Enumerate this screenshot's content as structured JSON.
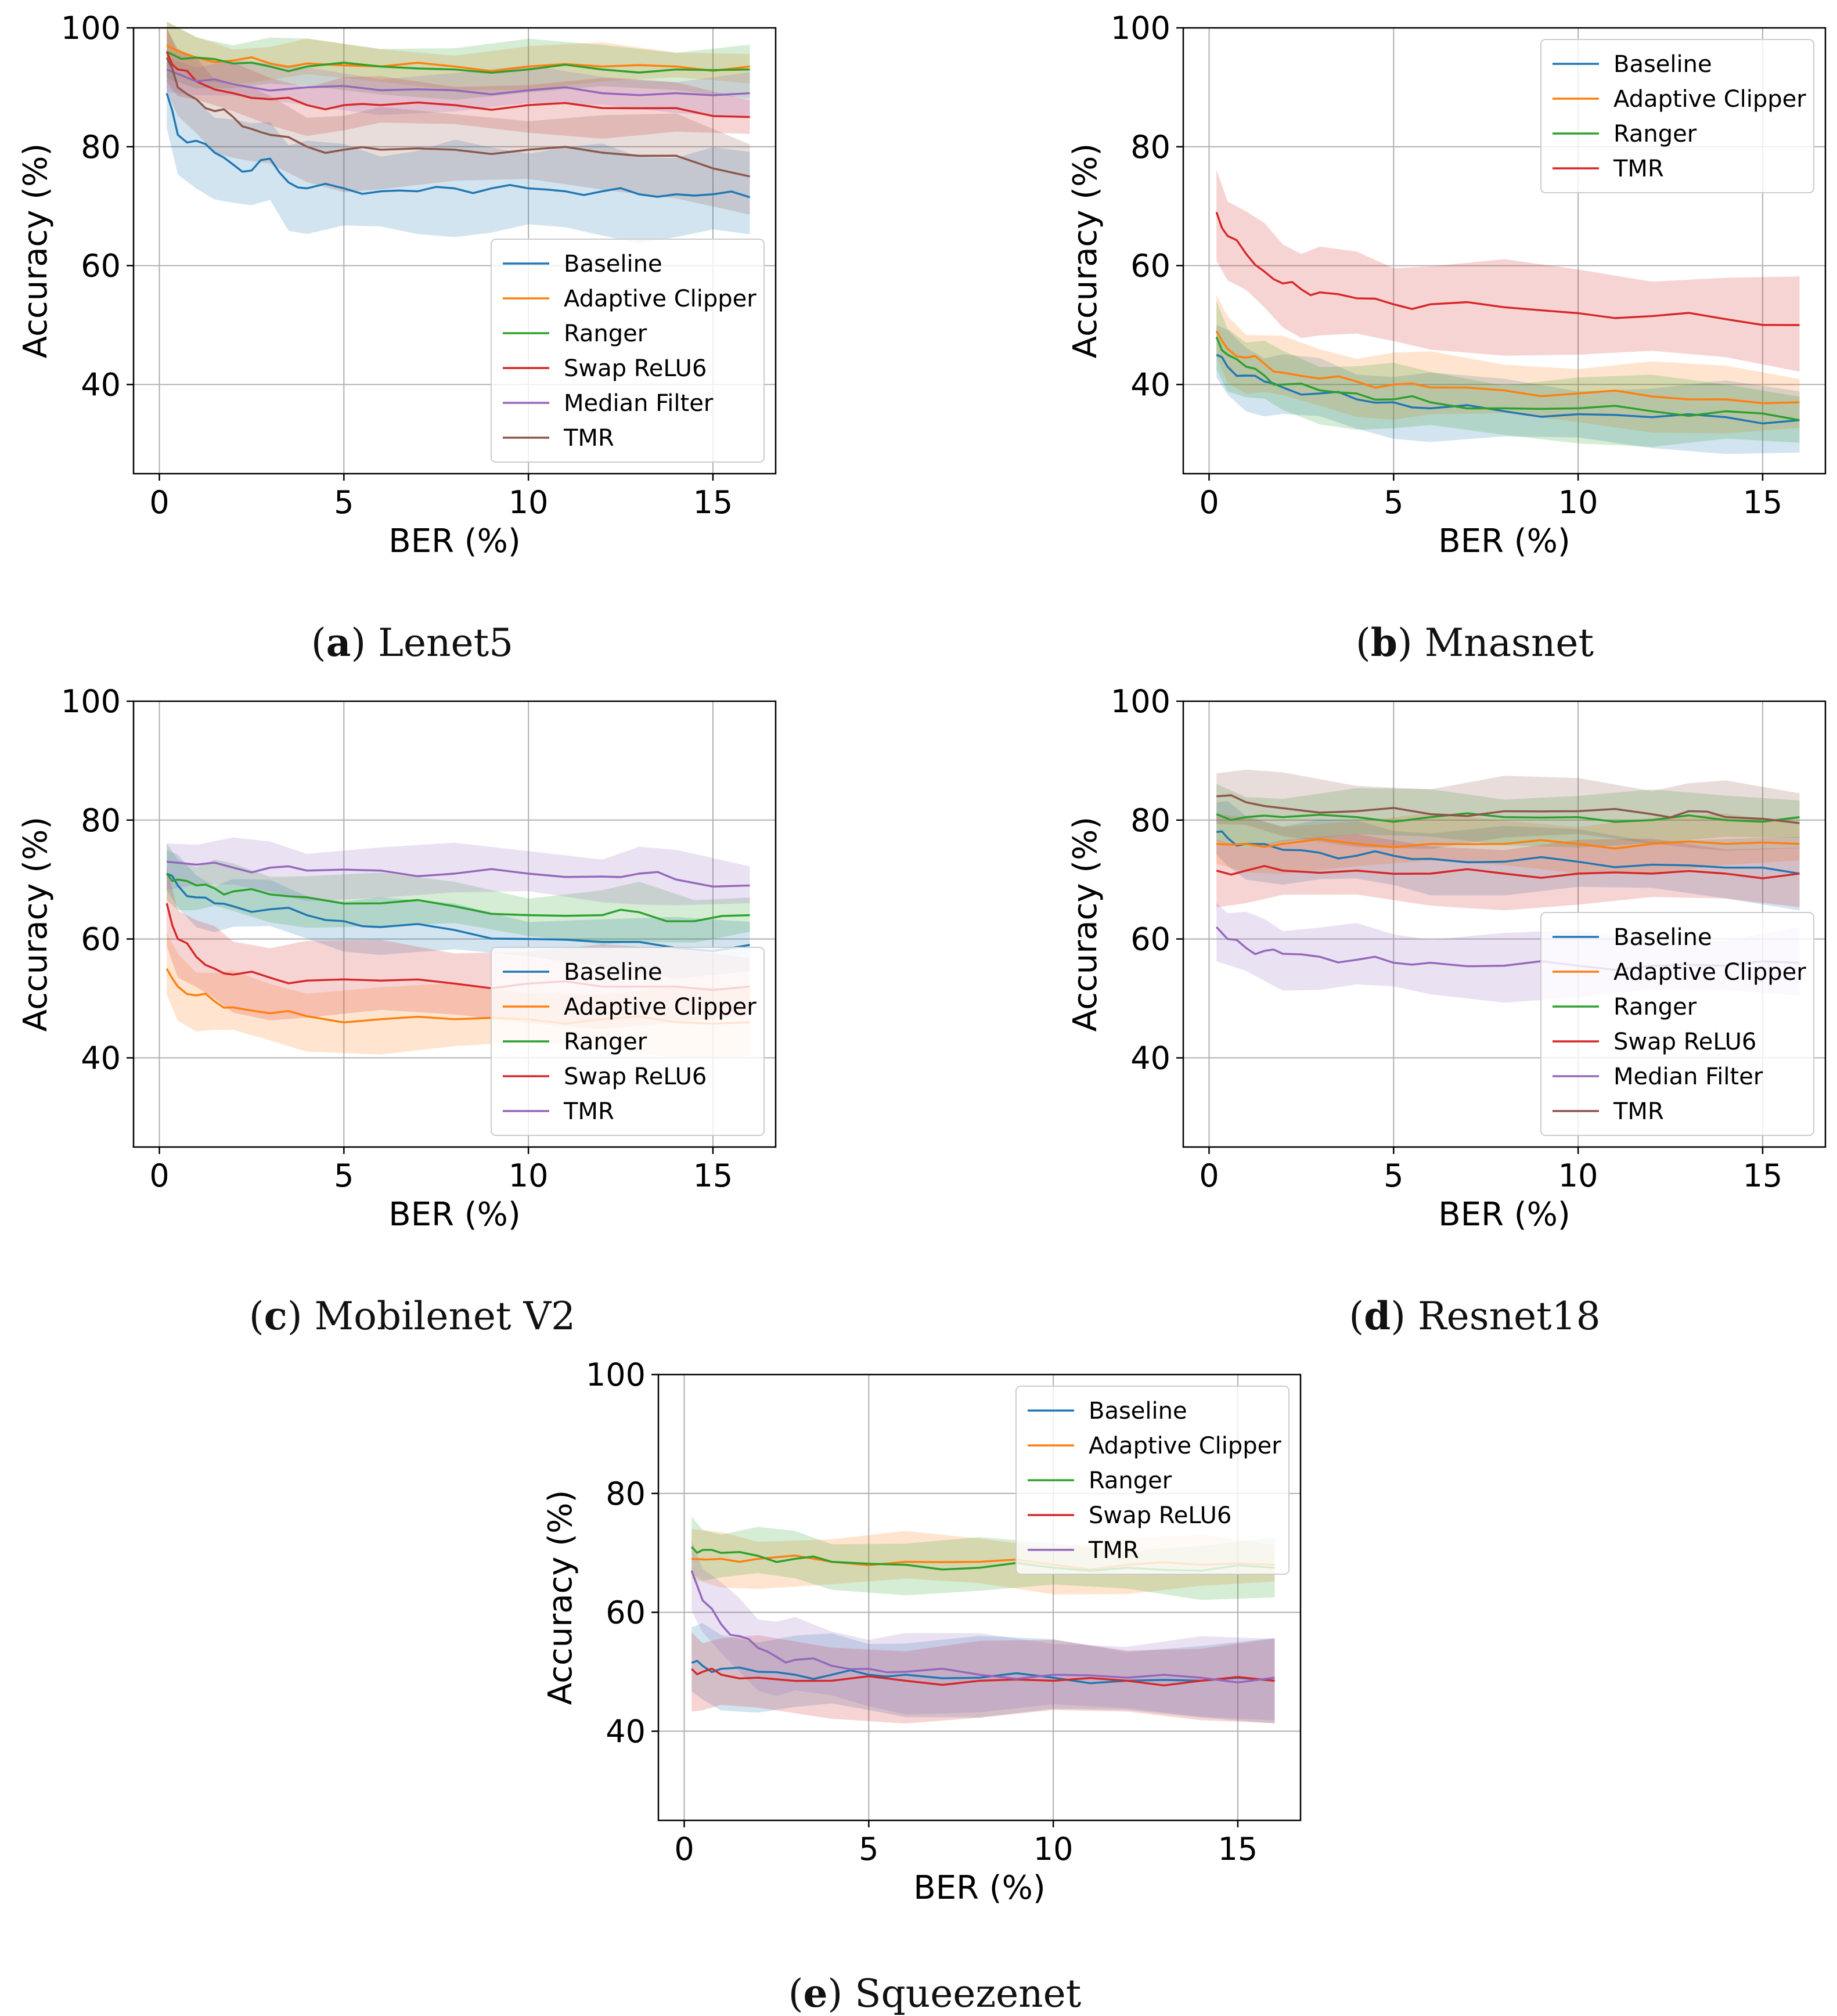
{
  "colors": {
    "Baseline": "#1f77b4",
    "Adaptive Clipper": "#ff7f0e",
    "Ranger": "#2ca02c",
    "Swap ReLU6": "#d62728",
    "Median Filter": "#9467bd",
    "TMR": "#8c564b"
  },
  "chart_data": [
    {
      "type": "line",
      "id": "a",
      "caption_letter": "a",
      "caption_name": "Lenet5",
      "xlabel": "BER (%)",
      "ylabel": "Accuracy (%)",
      "xlim": [
        -0.7,
        16.7
      ],
      "ylim": [
        25,
        100
      ],
      "xticks": [
        0,
        5,
        10,
        15
      ],
      "yticks": [
        40,
        60,
        80,
        100
      ],
      "grid": true,
      "legend_position": "lower-right",
      "series": [
        {
          "name": "Baseline",
          "color": "#1f77b4",
          "band": 7,
          "x": [
            0.2,
            0.5,
            1,
            1.5,
            2,
            2.5,
            3,
            3.5,
            4,
            5,
            6,
            7,
            8,
            9,
            10,
            11,
            12,
            13,
            14,
            15,
            16
          ],
          "values": [
            89,
            82,
            81,
            79,
            77,
            76,
            78,
            74,
            73,
            73,
            72.5,
            72.5,
            73,
            73,
            73,
            72.5,
            72.5,
            72,
            72,
            72,
            71.5
          ]
        },
        {
          "name": "Adaptive Clipper",
          "color": "#ff7f0e",
          "band": 3,
          "x": [
            0.2,
            1,
            2,
            3,
            4,
            6,
            8,
            10,
            12,
            14,
            16
          ],
          "values": [
            97,
            95,
            94.5,
            94,
            94,
            93.5,
            93.5,
            93.5,
            93.5,
            93.5,
            93.5
          ]
        },
        {
          "name": "Ranger",
          "color": "#2ca02c",
          "band": 4,
          "x": [
            0.2,
            1,
            2,
            3,
            4,
            6,
            8,
            10,
            12,
            14,
            16
          ],
          "values": [
            96,
            95,
            94,
            93.5,
            93.5,
            93.5,
            93,
            93,
            93,
            93,
            93
          ]
        },
        {
          "name": "Swap ReLU6",
          "color": "#d62728",
          "band": 4,
          "x": [
            0.2,
            0.5,
            1,
            2,
            3,
            4,
            5,
            6,
            8,
            10,
            12,
            14,
            16
          ],
          "values": [
            96,
            93,
            91,
            89,
            88,
            87,
            87,
            87,
            87,
            87,
            86.5,
            86.5,
            85
          ]
        },
        {
          "name": "Median Filter",
          "color": "#9467bd",
          "band": 3,
          "x": [
            0.2,
            1,
            2,
            4,
            6,
            8,
            10,
            12,
            14,
            16
          ],
          "values": [
            93,
            91,
            90.5,
            90,
            89.5,
            89.5,
            89.5,
            89,
            89,
            89
          ]
        },
        {
          "name": "TMR",
          "color": "#8c564b",
          "band": 6,
          "x": [
            0.2,
            0.5,
            1,
            1.5,
            2,
            2.5,
            3,
            4,
            5,
            6,
            8,
            10,
            12,
            14,
            16
          ],
          "values": [
            95,
            90,
            88,
            86,
            85,
            83,
            82,
            80,
            79.5,
            79.5,
            79.5,
            79.5,
            79,
            78.5,
            75
          ]
        }
      ]
    },
    {
      "type": "line",
      "id": "b",
      "caption_letter": "b",
      "caption_name": "Mnasnet",
      "xlabel": "BER (%)",
      "ylabel": "Accuracy (%)",
      "xlim": [
        -0.7,
        16.7
      ],
      "ylim": [
        25,
        100
      ],
      "xticks": [
        0,
        5,
        10,
        15
      ],
      "yticks": [
        40,
        60,
        80,
        100
      ],
      "grid": true,
      "legend_position": "upper-right",
      "series": [
        {
          "name": "Baseline",
          "color": "#1f77b4",
          "band": 5,
          "x": [
            0.2,
            0.5,
            1,
            1.5,
            2,
            3,
            4,
            5,
            6,
            8,
            10,
            12,
            14,
            16
          ],
          "values": [
            45,
            43,
            41.5,
            40.5,
            39.5,
            38.5,
            37.5,
            37,
            36,
            35.5,
            35,
            34.5,
            34.5,
            34
          ]
        },
        {
          "name": "Adaptive Clipper",
          "color": "#ff7f0e",
          "band": 5,
          "x": [
            0.2,
            0.5,
            1,
            1.5,
            2,
            3,
            4,
            5,
            6,
            8,
            10,
            12,
            14,
            16
          ],
          "values": [
            49,
            46,
            44.5,
            43.5,
            42,
            41,
            40.5,
            40,
            39.5,
            39,
            38.5,
            38,
            37.5,
            37
          ]
        },
        {
          "name": "Ranger",
          "color": "#2ca02c",
          "band": 5,
          "x": [
            0.2,
            0.5,
            1,
            1.5,
            2,
            3,
            4,
            5,
            6,
            8,
            10,
            12,
            14,
            16
          ],
          "values": [
            48,
            45,
            43,
            41.5,
            40,
            39,
            38.5,
            37.5,
            37,
            36,
            36,
            35.5,
            35.5,
            34
          ]
        },
        {
          "name": "TMR",
          "color": "#d62728",
          "band": 7,
          "x": [
            0.2,
            0.5,
            1,
            1.5,
            2,
            2.5,
            3,
            4,
            5,
            6,
            8,
            10,
            12,
            14,
            16
          ],
          "values": [
            69,
            65,
            62,
            59,
            57,
            56,
            55.5,
            54.5,
            53.5,
            53.5,
            53,
            52,
            51.5,
            51,
            50
          ]
        }
      ]
    },
    {
      "type": "line",
      "id": "c",
      "caption_letter": "c",
      "caption_name": "Mobilenet V2",
      "xlabel": "BER (%)",
      "ylabel": "Accuracy (%)",
      "xlim": [
        -0.7,
        16.7
      ],
      "ylim": [
        25,
        100
      ],
      "xticks": [
        0,
        5,
        10,
        15
      ],
      "yticks": [
        40,
        60,
        80,
        100
      ],
      "grid": true,
      "legend_position": "lower-right",
      "series": [
        {
          "name": "Baseline",
          "color": "#1f77b4",
          "band": 4,
          "x": [
            0.2,
            0.5,
            1,
            1.5,
            2,
            3,
            4,
            5,
            6,
            8,
            10,
            12,
            14,
            16
          ],
          "values": [
            71,
            69,
            67,
            66,
            65.5,
            65,
            64,
            63,
            62,
            61.5,
            60,
            59.5,
            58.5,
            59
          ]
        },
        {
          "name": "Adaptive Clipper",
          "color": "#ff7f0e",
          "band": 5,
          "x": [
            0.2,
            0.5,
            1,
            1.5,
            2,
            3,
            4,
            6,
            8,
            10,
            12,
            14,
            16
          ],
          "values": [
            55,
            52,
            50.5,
            49.5,
            48.5,
            47.5,
            47,
            46.5,
            46.5,
            46.5,
            46.5,
            46,
            46
          ]
        },
        {
          "name": "Ranger",
          "color": "#2ca02c",
          "band": 4,
          "x": [
            0.2,
            0.5,
            1,
            1.5,
            2,
            3,
            4,
            6,
            8,
            10,
            12,
            13,
            14.5,
            16
          ],
          "values": [
            71,
            70,
            69,
            68.5,
            68,
            67.5,
            67,
            66,
            65.5,
            64,
            64,
            64.5,
            63,
            64
          ]
        },
        {
          "name": "Swap ReLU6",
          "color": "#d62728",
          "band": 6,
          "x": [
            0.2,
            0.5,
            1,
            1.5,
            2,
            3,
            4,
            6,
            8,
            10,
            12,
            14,
            16
          ],
          "values": [
            66,
            60,
            57,
            55,
            54,
            53.5,
            53,
            53,
            52.5,
            52.5,
            52,
            52,
            52
          ]
        },
        {
          "name": "TMR",
          "color": "#9467bd",
          "band": 4,
          "x": [
            0.2,
            1,
            2,
            3,
            4,
            6,
            8,
            10,
            12,
            13,
            14,
            16
          ],
          "values": [
            73,
            72.5,
            72,
            72,
            71.5,
            71.5,
            71,
            71,
            70.5,
            71,
            70,
            69
          ]
        }
      ]
    },
    {
      "type": "line",
      "id": "d",
      "caption_letter": "d",
      "caption_name": "Resnet18",
      "xlabel": "BER (%)",
      "ylabel": "Accuracy (%)",
      "xlim": [
        -0.7,
        16.7
      ],
      "ylim": [
        25,
        100
      ],
      "xticks": [
        0,
        5,
        10,
        15
      ],
      "yticks": [
        40,
        60,
        80,
        100
      ],
      "grid": true,
      "legend_position": "lower-right",
      "series": [
        {
          "name": "Baseline",
          "color": "#1f77b4",
          "band": 5,
          "x": [
            0.2,
            0.5,
            1,
            2,
            3,
            4,
            5,
            6,
            8,
            10,
            12,
            14,
            16
          ],
          "values": [
            78,
            77,
            76,
            75,
            74.5,
            74,
            74,
            73.5,
            73,
            73,
            72.5,
            72,
            71
          ]
        },
        {
          "name": "Adaptive Clipper",
          "color": "#ff7f0e",
          "band": 4,
          "x": [
            0.2,
            1,
            2,
            4,
            6,
            8,
            10,
            12,
            14,
            16
          ],
          "values": [
            76,
            76,
            76,
            76,
            76,
            76,
            76,
            76,
            76,
            76
          ]
        },
        {
          "name": "Ranger",
          "color": "#2ca02c",
          "band": 4,
          "x": [
            0.2,
            1,
            2,
            4,
            6,
            8,
            10,
            12,
            14,
            16
          ],
          "values": [
            81,
            80.5,
            80.5,
            80.5,
            80.5,
            80.5,
            80.5,
            80,
            80,
            80.5
          ]
        },
        {
          "name": "Swap ReLU6",
          "color": "#d62728",
          "band": 5,
          "x": [
            0.2,
            1,
            2,
            4,
            6,
            8,
            10,
            12,
            14,
            16
          ],
          "values": [
            71.5,
            71.5,
            71.5,
            71.5,
            71,
            71,
            71,
            71,
            71,
            71
          ]
        },
        {
          "name": "Median Filter",
          "color": "#9467bd",
          "band": 5,
          "x": [
            0.2,
            0.5,
            1,
            1.5,
            2,
            3,
            4,
            5,
            6,
            8,
            10,
            12,
            14,
            16
          ],
          "values": [
            62,
            60,
            58.5,
            58,
            57.5,
            57,
            56.5,
            56,
            56,
            55.5,
            55.5,
            55.5,
            55.5,
            56
          ]
        },
        {
          "name": "TMR",
          "color": "#8c564b",
          "band": 5,
          "x": [
            0.2,
            1,
            2,
            4,
            6,
            8,
            10,
            12,
            13,
            14,
            16
          ],
          "values": [
            84,
            83,
            82,
            81.5,
            81,
            81.5,
            81.5,
            81,
            81.5,
            80.5,
            79.5
          ]
        }
      ]
    },
    {
      "type": "line",
      "id": "e",
      "caption_letter": "e",
      "caption_name": "Squeezenet",
      "xlabel": "BER (%)",
      "ylabel": "Accuracy (%)",
      "xlim": [
        -0.7,
        16.7
      ],
      "ylim": [
        25,
        100
      ],
      "xticks": [
        0,
        5,
        10,
        15
      ],
      "yticks": [
        40,
        60,
        80,
        100
      ],
      "grid": true,
      "legend_position": "upper-right",
      "series": [
        {
          "name": "Baseline",
          "color": "#1f77b4",
          "band": 6,
          "x": [
            0.2,
            0.5,
            1,
            2,
            3,
            4,
            5,
            6,
            8,
            10,
            12,
            14,
            16
          ],
          "values": [
            51.5,
            51,
            50.5,
            50,
            49.5,
            49.5,
            49.5,
            49.5,
            49,
            49,
            48.5,
            48.5,
            48.5
          ]
        },
        {
          "name": "Adaptive Clipper",
          "color": "#ff7f0e",
          "band": 4,
          "x": [
            0.2,
            1,
            2,
            4,
            6,
            8,
            10,
            12,
            14,
            16
          ],
          "values": [
            69,
            69,
            69,
            68.5,
            68.5,
            68.5,
            68,
            68,
            68,
            68
          ]
        },
        {
          "name": "Ranger",
          "color": "#2ca02c",
          "band": 4,
          "x": [
            0.2,
            0.5,
            1,
            2,
            3,
            4,
            6,
            8,
            10,
            12,
            14,
            16
          ],
          "values": [
            71,
            70.5,
            70,
            69.5,
            69,
            68.5,
            68,
            67.5,
            67.5,
            67.5,
            67,
            67.5
          ]
        },
        {
          "name": "Swap ReLU6",
          "color": "#d62728",
          "band": 6,
          "x": [
            0.2,
            0.5,
            1,
            2,
            4,
            6,
            8,
            10,
            12,
            14,
            16
          ],
          "values": [
            50.5,
            50,
            49.5,
            49,
            48.5,
            48.5,
            48.5,
            48.5,
            48.5,
            48.5,
            48.5
          ]
        },
        {
          "name": "TMR",
          "color": "#9467bd",
          "band": 6,
          "x": [
            0.2,
            0.5,
            1,
            1.5,
            2,
            2.5,
            3,
            4,
            5,
            6,
            8,
            10,
            12,
            14,
            16
          ],
          "values": [
            67,
            62,
            58,
            56,
            54,
            52.5,
            52,
            51,
            50.5,
            50,
            49.5,
            49.5,
            49,
            49,
            49
          ]
        }
      ]
    }
  ]
}
